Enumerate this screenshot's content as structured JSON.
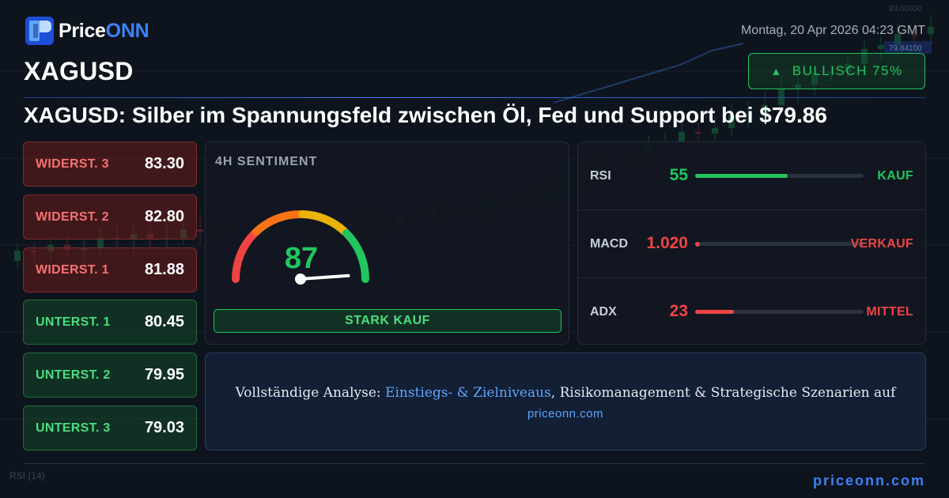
{
  "brand": {
    "name_primary": "Price",
    "name_accent": "ONN"
  },
  "datetime": "Montag, 20 Apr 2026 04:23 GMT",
  "symbol": "XAGUSD",
  "signal": {
    "arrow": "▲",
    "label": "BULLISCH 75%",
    "color": "#22c55e"
  },
  "headline": "XAGUSD: Silber im Spannungsfeld zwischen Öl, Fed und Support bei $79.86",
  "levels": [
    {
      "label": "WIDERST. 3",
      "value": "83.30",
      "kind": "resistance"
    },
    {
      "label": "WIDERST. 2",
      "value": "82.80",
      "kind": "resistance"
    },
    {
      "label": "WIDERST. 1",
      "value": "81.88",
      "kind": "resistance"
    },
    {
      "label": "UNTERST. 1",
      "value": "80.45",
      "kind": "support"
    },
    {
      "label": "UNTERST. 2",
      "value": "79.95",
      "kind": "support"
    },
    {
      "label": "UNTERST. 3",
      "value": "79.03",
      "kind": "support"
    }
  ],
  "sentiment": {
    "title": "4H SENTIMENT",
    "score": "87",
    "score_fraction": 0.87,
    "verdict": "STARK KAUF"
  },
  "indicators": [
    {
      "name": "RSI",
      "value": "55",
      "fill_fraction": 0.55,
      "signal": "KAUF",
      "color": "#22c55e"
    },
    {
      "name": "MACD",
      "value": "1.020",
      "fill_fraction": 0.0,
      "signal": "VERKAUF",
      "color": "#ef4444"
    },
    {
      "name": "ADX",
      "value": "23",
      "fill_fraction": 0.23,
      "signal": "MITTEL",
      "color": "#ef4444"
    }
  ],
  "cta": {
    "prefix": "Vollständige Analyse: ",
    "link": "Einstiegs- & Zielniveaus",
    "suffix": ", Risikomanagement & Strategische Szenarien auf",
    "url": "priceonn.com"
  },
  "footer_url": "priceonn.com",
  "colors": {
    "background": "#0e141d",
    "bullish": "#22c55e",
    "bearish": "#ef4444",
    "accent": "#3b82f6"
  }
}
